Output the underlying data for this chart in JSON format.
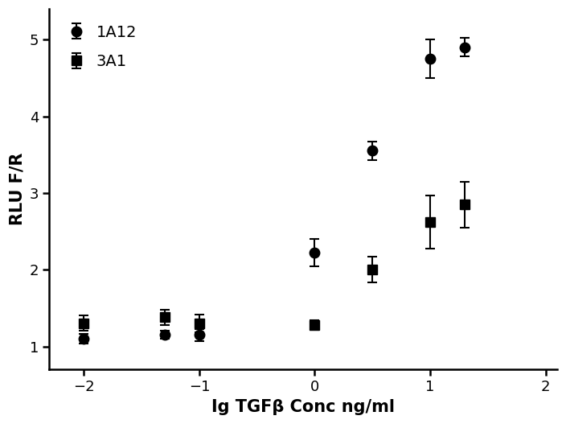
{
  "title": "",
  "xlabel": "Ig TGFβ Conc ng/ml",
  "ylabel": "RLU F/R",
  "xlim": [
    -2.3,
    2.1
  ],
  "ylim": [
    0.7,
    5.4
  ],
  "xticks": [
    -2,
    -1,
    0,
    1,
    2
  ],
  "yticks": [
    1,
    2,
    3,
    4,
    5
  ],
  "line_color": "#000000",
  "marker_color": "#000000",
  "series_1A12": {
    "label": "1A12",
    "x": [
      -2.0,
      -1.3,
      -1.0,
      0.0,
      0.5,
      1.0,
      1.3
    ],
    "y": [
      1.1,
      1.15,
      1.15,
      2.22,
      3.55,
      4.75,
      4.9
    ],
    "yerr": [
      0.06,
      0.05,
      0.08,
      0.18,
      0.12,
      0.25,
      0.12
    ],
    "marker": "o",
    "markersize": 9,
    "fit_p0": [
      1.1,
      5.2,
      0.1,
      2.5
    ],
    "fit_bounds_low": [
      0.9,
      4.5,
      -1.0,
      1.0
    ],
    "fit_bounds_high": [
      1.3,
      6.0,
      1.0,
      5.0
    ]
  },
  "series_3A1": {
    "label": "3A1",
    "x": [
      -2.0,
      -1.3,
      -1.0,
      0.0,
      0.5,
      1.0,
      1.3
    ],
    "y": [
      1.3,
      1.38,
      1.3,
      1.28,
      2.0,
      2.62,
      2.85
    ],
    "yerr": [
      0.1,
      0.1,
      0.12,
      0.06,
      0.17,
      0.35,
      0.3
    ],
    "marker": "s",
    "markersize": 9,
    "fit_p0": [
      1.28,
      3.1,
      0.6,
      2.5
    ],
    "fit_bounds_low": [
      1.1,
      2.5,
      0.0,
      1.0
    ],
    "fit_bounds_high": [
      1.5,
      4.0,
      1.5,
      5.0
    ]
  },
  "legend_fontsize": 14,
  "axis_label_fontsize": 15,
  "tick_label_fontsize": 13,
  "linewidth": 1.8,
  "background_color": "#ffffff",
  "figsize": [
    7.04,
    5.27
  ],
  "dpi": 100
}
